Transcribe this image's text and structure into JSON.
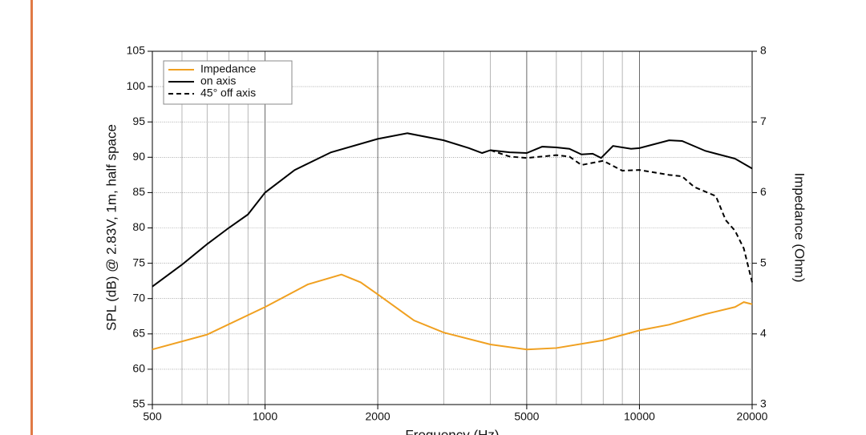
{
  "chart_data": {
    "type": "line",
    "xlabel": "Frequency (Hz)",
    "ylabel": "SPL (dB) @ 2.83V, 1m, half space",
    "y2label": "Impedance (Ohm)",
    "xscale": "log",
    "xlim": [
      500,
      20000
    ],
    "xticks": [
      500,
      1000,
      2000,
      5000,
      10000,
      20000
    ],
    "xminorticks": [
      600,
      700,
      800,
      900,
      3000,
      4000,
      6000,
      7000,
      8000,
      9000
    ],
    "ylim": [
      55,
      105
    ],
    "yticks": [
      55,
      60,
      65,
      70,
      75,
      80,
      85,
      90,
      95,
      100,
      105
    ],
    "y2lim": [
      3,
      8
    ],
    "y2ticks": [
      3,
      4,
      5,
      6,
      7,
      8
    ],
    "grid": true,
    "legend": "upper left",
    "series": [
      {
        "name": "Impedance",
        "color": "#f0a020",
        "dash": "solid",
        "axis": "y2",
        "x": [
          500,
          700,
          1000,
          1300,
          1600,
          1800,
          2000,
          2500,
          3000,
          4000,
          5000,
          6000,
          8000,
          10000,
          12000,
          15000,
          18000,
          19000,
          20000
        ],
        "values": [
          3.78,
          3.99,
          4.38,
          4.7,
          4.84,
          4.73,
          4.56,
          4.19,
          4.02,
          3.85,
          3.78,
          3.8,
          3.91,
          4.05,
          4.13,
          4.28,
          4.38,
          4.45,
          4.42
        ]
      },
      {
        "name": "on axis",
        "color": "#000000",
        "dash": "solid",
        "x": [
          500,
          600,
          700,
          800,
          900,
          1000,
          1200,
          1500,
          2000,
          2400,
          3000,
          3500,
          3800,
          4000,
          4500,
          5000,
          5500,
          6000,
          6500,
          7000,
          7500,
          7900,
          8500,
          9500,
          10000,
          12000,
          13000,
          15000,
          18000,
          20000
        ],
        "values": [
          71.7,
          74.8,
          77.7,
          80,
          81.9,
          85,
          88.2,
          90.7,
          92.6,
          93.4,
          92.4,
          91.3,
          90.6,
          91,
          90.7,
          90.6,
          91.5,
          91.4,
          91.2,
          90.4,
          90.5,
          89.9,
          91.6,
          91.2,
          91.3,
          92.4,
          92.3,
          90.9,
          89.8,
          88.4
        ]
      },
      {
        "name": "45° off axis",
        "color": "#000000",
        "dash": "dashed",
        "x": [
          4000,
          4500,
          5000,
          6000,
          6500,
          7000,
          8000,
          9000,
          10000,
          12000,
          13000,
          14000,
          16000,
          17000,
          18000,
          19000,
          20000
        ],
        "values": [
          91,
          90.1,
          89.9,
          90.3,
          90.1,
          88.9,
          89.5,
          88.1,
          88.2,
          87.5,
          87.3,
          85.8,
          84.5,
          81.1,
          79.6,
          77.1,
          72.3
        ]
      }
    ]
  }
}
